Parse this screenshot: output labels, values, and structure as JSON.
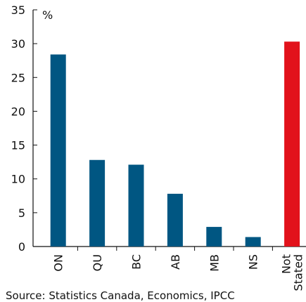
{
  "chart_data": {
    "type": "bar",
    "unit_label": "%",
    "categories": [
      "ON",
      "QU",
      "BC",
      "AB",
      "MB",
      "NS",
      "Not Stated"
    ],
    "category_lines": [
      [
        "ON"
      ],
      [
        "QU"
      ],
      [
        "BC"
      ],
      [
        "AB"
      ],
      [
        "MB"
      ],
      [
        "NS"
      ],
      [
        "Not",
        "Stated"
      ]
    ],
    "values": [
      28.4,
      12.8,
      12.1,
      7.8,
      2.9,
      1.4,
      30.3
    ],
    "bar_colors": [
      "#005682",
      "#005682",
      "#005682",
      "#005682",
      "#005682",
      "#005682",
      "#e2121b"
    ],
    "ylim": [
      0,
      35
    ],
    "yticks": [
      0,
      5,
      10,
      15,
      20,
      25,
      30,
      35
    ],
    "grid": false,
    "legend": "none"
  },
  "source_note": "Source: Statistics  Canada, Economics, IPCC"
}
